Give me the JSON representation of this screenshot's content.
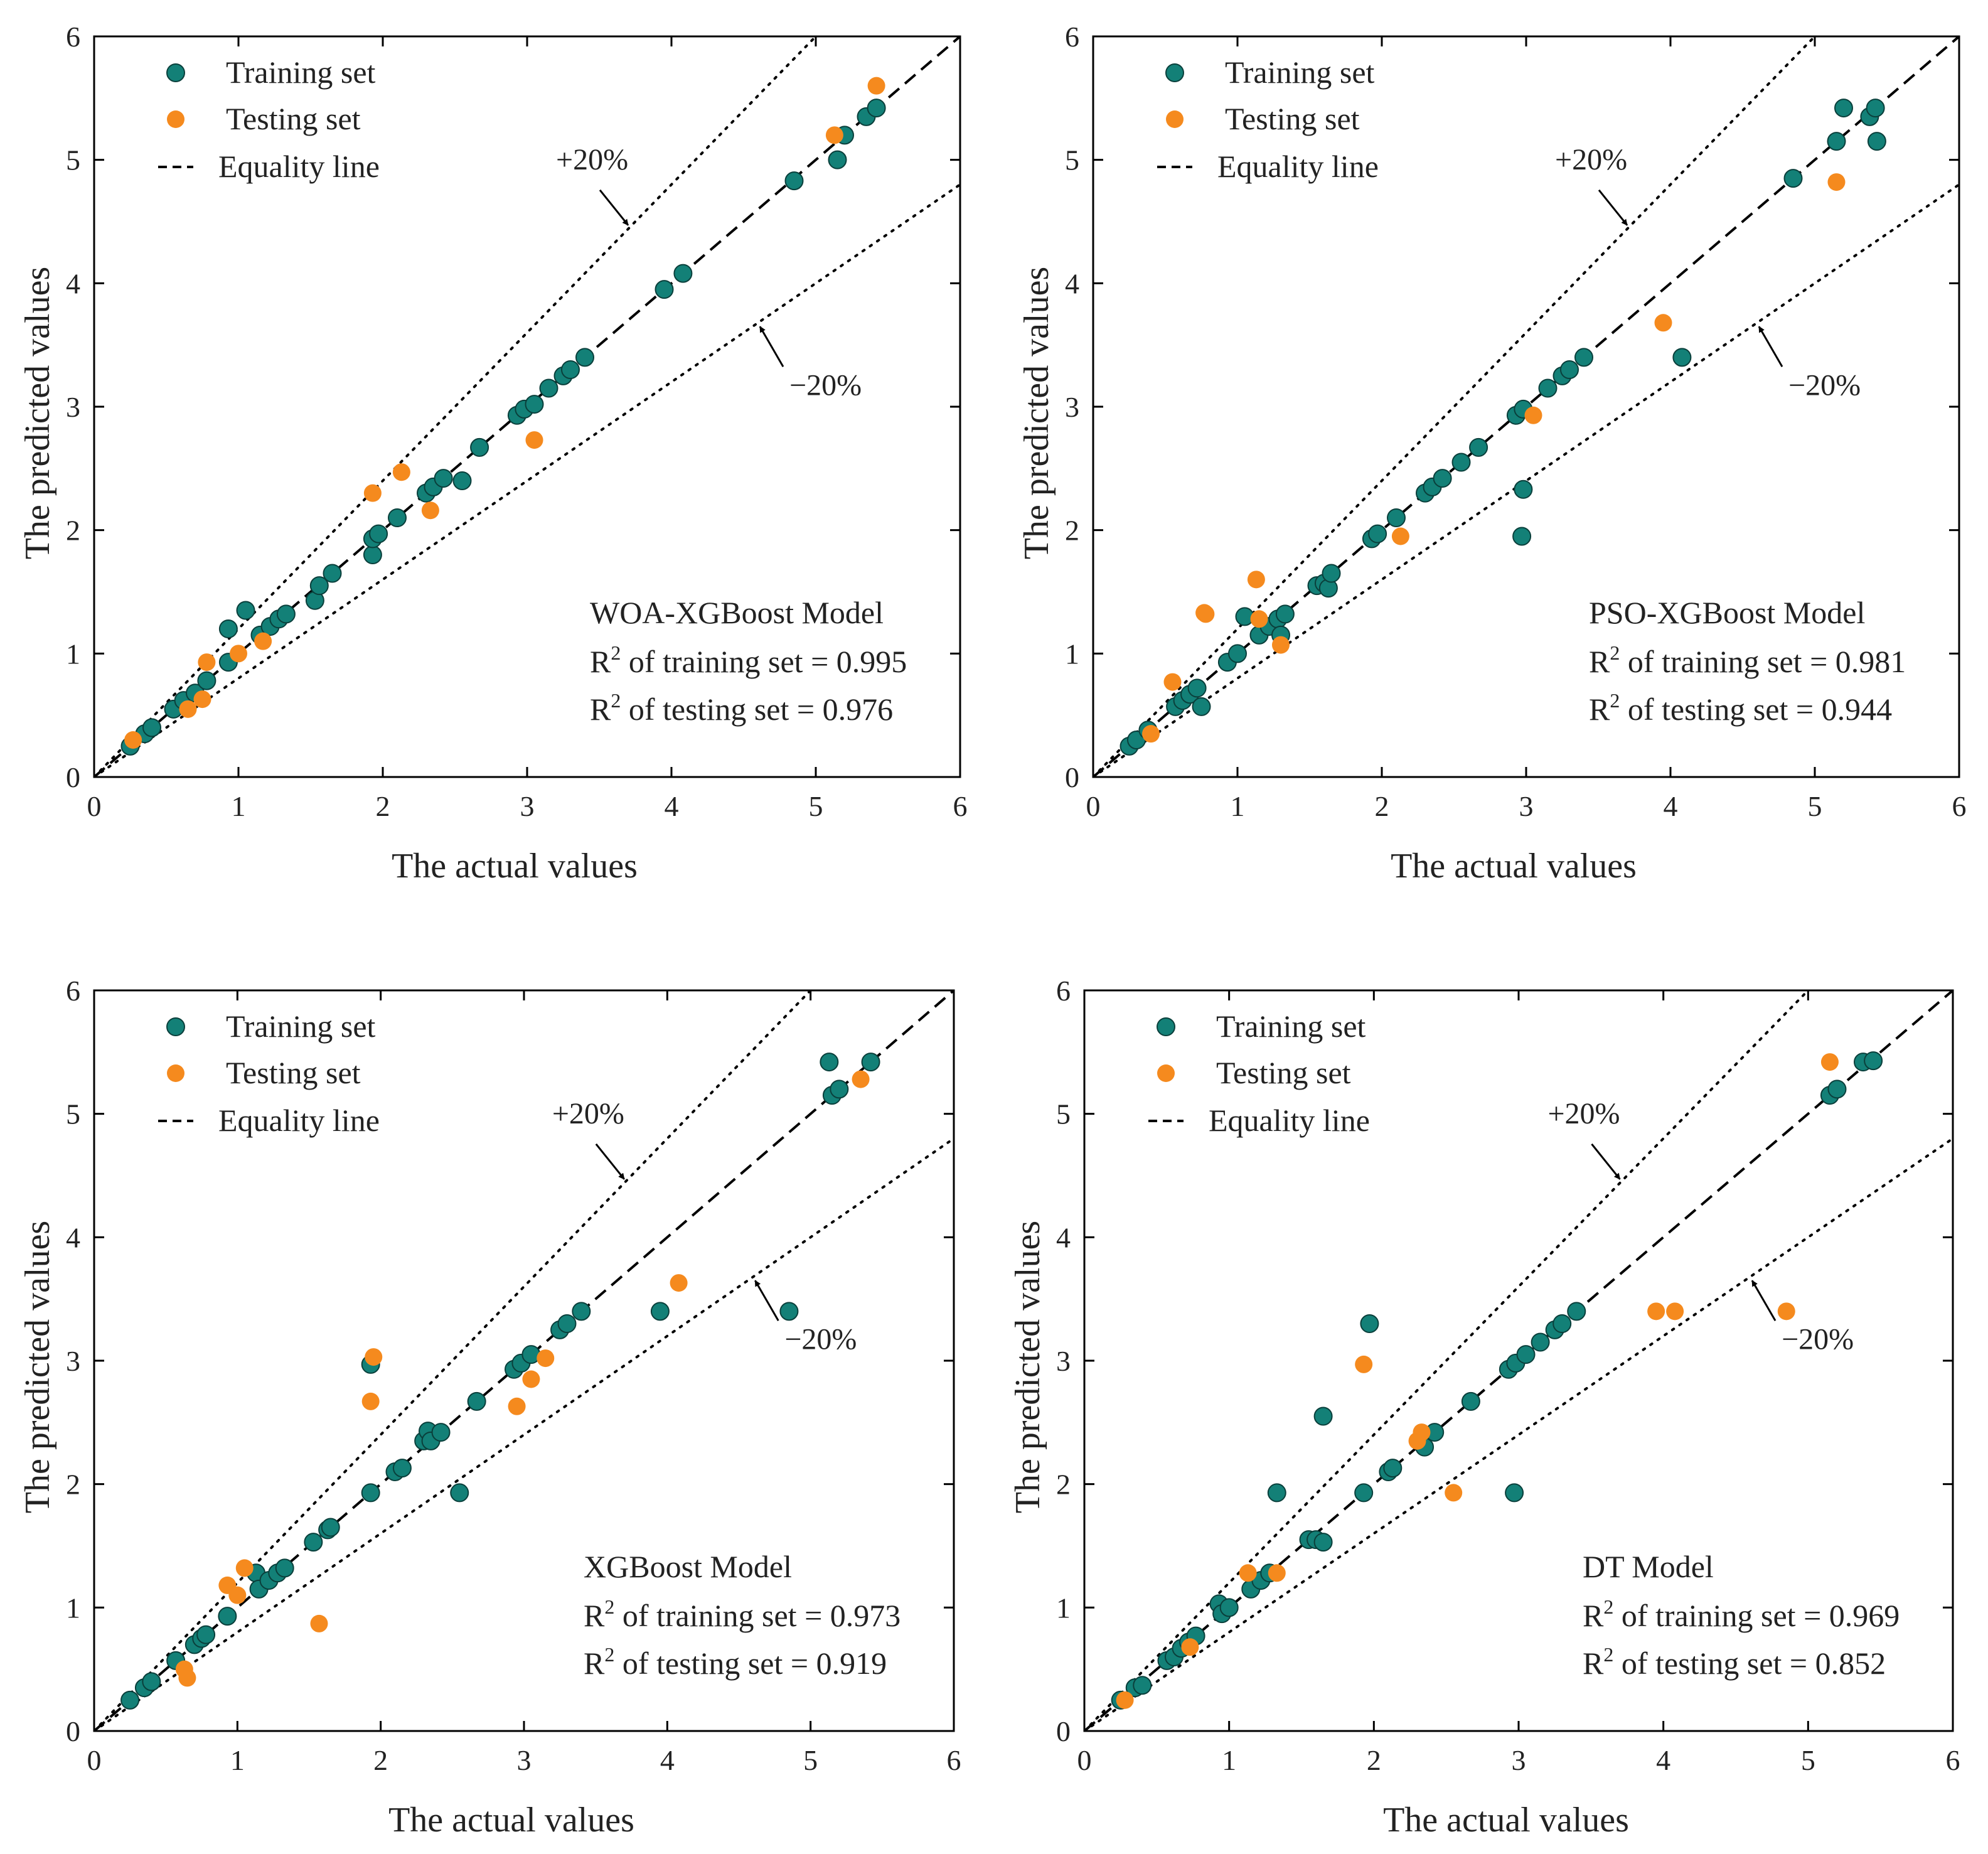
{
  "colors": {
    "training": "#138077",
    "testing": "#F58A1E",
    "axis": "#000000",
    "text": "#222222"
  },
  "legend": {
    "training": "Training set",
    "testing": "Testing set",
    "equality": "Equality line"
  },
  "annotations": {
    "plus": "+20%",
    "minus": "−20%"
  },
  "chart_data": [
    {
      "type": "scatter",
      "model": "WOA-XGBoost Model",
      "r2_train_label": "of training set = 0.995",
      "r2_test_label": "of testing set = 0.976",
      "r_symbol": "R",
      "r_sup": "2",
      "xlabel": "The actual values",
      "ylabel": "The predicted values",
      "xlim": [
        0,
        6
      ],
      "ylim": [
        0,
        6
      ],
      "xticks": [
        "0",
        "1",
        "2",
        "3",
        "4",
        "5",
        "6"
      ],
      "yticks": [
        "0",
        "1",
        "2",
        "3",
        "4",
        "5",
        "6"
      ],
      "legend_position": "top-left",
      "model_label_position": "bottom-right",
      "series": [
        {
          "name": "Training set",
          "points": [
            [
              0.25,
              0.25
            ],
            [
              0.35,
              0.35
            ],
            [
              0.4,
              0.4
            ],
            [
              0.55,
              0.55
            ],
            [
              0.62,
              0.62
            ],
            [
              0.7,
              0.68
            ],
            [
              0.78,
              0.78
            ],
            [
              0.93,
              0.93
            ],
            [
              0.93,
              1.2
            ],
            [
              1.05,
              1.35
            ],
            [
              1.15,
              1.15
            ],
            [
              1.22,
              1.22
            ],
            [
              1.28,
              1.28
            ],
            [
              1.33,
              1.32
            ],
            [
              1.53,
              1.43
            ],
            [
              1.56,
              1.55
            ],
            [
              1.65,
              1.65
            ],
            [
              1.93,
              1.8
            ],
            [
              1.93,
              1.93
            ],
            [
              1.97,
              1.97
            ],
            [
              2.1,
              2.1
            ],
            [
              2.3,
              2.3
            ],
            [
              2.35,
              2.35
            ],
            [
              2.42,
              2.42
            ],
            [
              2.55,
              2.4
            ],
            [
              2.67,
              2.67
            ],
            [
              2.93,
              2.93
            ],
            [
              2.98,
              2.98
            ],
            [
              3.05,
              3.02
            ],
            [
              3.15,
              3.15
            ],
            [
              3.25,
              3.25
            ],
            [
              3.3,
              3.3
            ],
            [
              3.4,
              3.4
            ],
            [
              3.95,
              3.95
            ],
            [
              4.08,
              4.08
            ],
            [
              4.85,
              4.83
            ],
            [
              5.15,
              5.0
            ],
            [
              5.2,
              5.2
            ],
            [
              5.35,
              5.35
            ],
            [
              5.42,
              5.42
            ]
          ]
        },
        {
          "name": "Testing set",
          "points": [
            [
              0.27,
              0.3
            ],
            [
              0.65,
              0.55
            ],
            [
              0.75,
              0.63
            ],
            [
              0.78,
              0.93
            ],
            [
              1.0,
              1.0
            ],
            [
              1.17,
              1.1
            ],
            [
              1.93,
              2.3
            ],
            [
              2.13,
              2.47
            ],
            [
              2.33,
              2.16
            ],
            [
              3.05,
              2.73
            ],
            [
              5.13,
              5.2
            ],
            [
              5.42,
              5.6
            ]
          ]
        }
      ]
    },
    {
      "type": "scatter",
      "model": "PSO-XGBoost Model",
      "r2_train_label": "of training set = 0.981",
      "r2_test_label": "of testing set = 0.944",
      "r_symbol": "R",
      "r_sup": "2",
      "xlabel": "The actual values",
      "ylabel": "The predicted values",
      "xlim": [
        0,
        6
      ],
      "ylim": [
        0,
        6
      ],
      "xticks": [
        "0",
        "1",
        "2",
        "3",
        "4",
        "5",
        "6"
      ],
      "yticks": [
        "0",
        "1",
        "2",
        "3",
        "4",
        "5",
        "6"
      ],
      "legend_position": "top-left",
      "model_label_position": "bottom-right",
      "series": [
        {
          "name": "Training set",
          "points": [
            [
              0.25,
              0.25
            ],
            [
              0.3,
              0.3
            ],
            [
              0.38,
              0.38
            ],
            [
              0.57,
              0.57
            ],
            [
              0.62,
              0.62
            ],
            [
              0.67,
              0.67
            ],
            [
              0.72,
              0.72
            ],
            [
              0.75,
              0.57
            ],
            [
              0.93,
              0.93
            ],
            [
              1.0,
              1.0
            ],
            [
              1.05,
              1.3
            ],
            [
              1.15,
              1.15
            ],
            [
              1.22,
              1.22
            ],
            [
              1.28,
              1.28
            ],
            [
              1.3,
              1.15
            ],
            [
              1.33,
              1.32
            ],
            [
              1.55,
              1.55
            ],
            [
              1.6,
              1.57
            ],
            [
              1.63,
              1.53
            ],
            [
              1.65,
              1.65
            ],
            [
              1.93,
              1.93
            ],
            [
              1.97,
              1.97
            ],
            [
              2.1,
              2.1
            ],
            [
              2.3,
              2.3
            ],
            [
              2.35,
              2.35
            ],
            [
              2.42,
              2.42
            ],
            [
              2.55,
              2.55
            ],
            [
              2.67,
              2.67
            ],
            [
              2.93,
              2.93
            ],
            [
              2.98,
              2.98
            ],
            [
              2.97,
              1.95
            ],
            [
              2.98,
              2.33
            ],
            [
              3.15,
              3.15
            ],
            [
              3.25,
              3.25
            ],
            [
              3.3,
              3.3
            ],
            [
              3.4,
              3.4
            ],
            [
              4.08,
              3.4
            ],
            [
              4.85,
              4.85
            ],
            [
              5.15,
              5.15
            ],
            [
              5.2,
              5.42
            ],
            [
              5.38,
              5.35
            ],
            [
              5.42,
              5.42
            ],
            [
              5.43,
              5.15
            ]
          ]
        },
        {
          "name": "Testing set",
          "points": [
            [
              0.4,
              0.35
            ],
            [
              0.55,
              0.77
            ],
            [
              0.77,
              1.33
            ],
            [
              0.78,
              1.32
            ],
            [
              1.13,
              1.6
            ],
            [
              1.15,
              1.28
            ],
            [
              1.3,
              1.07
            ],
            [
              2.13,
              1.95
            ],
            [
              3.05,
              2.93
            ],
            [
              3.95,
              3.68
            ],
            [
              5.15,
              4.82
            ]
          ]
        }
      ]
    },
    {
      "type": "scatter",
      "model": "XGBoost Model",
      "r2_train_label": "of training set = 0.973",
      "r2_test_label": "of testing set = 0.919",
      "r_symbol": "R",
      "r_sup": "2",
      "xlabel": "The actual values",
      "ylabel": "The predicted values",
      "xlim": [
        0,
        6
      ],
      "ylim": [
        0,
        6
      ],
      "xticks": [
        "0",
        "1",
        "2",
        "3",
        "4",
        "5",
        "6"
      ],
      "yticks": [
        "0",
        "1",
        "2",
        "3",
        "4",
        "5",
        "6"
      ],
      "legend_position": "top-left",
      "model_label_position": "bottom-right",
      "series": [
        {
          "name": "Training set",
          "points": [
            [
              0.25,
              0.25
            ],
            [
              0.35,
              0.35
            ],
            [
              0.4,
              0.4
            ],
            [
              0.57,
              0.57
            ],
            [
              0.7,
              0.7
            ],
            [
              0.75,
              0.75
            ],
            [
              0.78,
              0.78
            ],
            [
              0.93,
              0.93
            ],
            [
              1.13,
              1.28
            ],
            [
              1.15,
              1.15
            ],
            [
              1.22,
              1.22
            ],
            [
              1.28,
              1.28
            ],
            [
              1.33,
              1.32
            ],
            [
              1.53,
              1.53
            ],
            [
              1.63,
              1.63
            ],
            [
              1.65,
              1.65
            ],
            [
              1.93,
              1.93
            ],
            [
              1.93,
              2.97
            ],
            [
              2.1,
              2.1
            ],
            [
              2.15,
              2.13
            ],
            [
              2.3,
              2.35
            ],
            [
              2.33,
              2.43
            ],
            [
              2.35,
              2.35
            ],
            [
              2.42,
              2.42
            ],
            [
              2.55,
              1.93
            ],
            [
              2.67,
              2.67
            ],
            [
              2.93,
              2.93
            ],
            [
              2.98,
              2.98
            ],
            [
              3.05,
              3.05
            ],
            [
              3.25,
              3.25
            ],
            [
              3.3,
              3.3
            ],
            [
              3.4,
              3.4
            ],
            [
              3.95,
              3.4
            ],
            [
              4.85,
              3.4
            ],
            [
              5.13,
              5.42
            ],
            [
              5.15,
              5.15
            ],
            [
              5.2,
              5.2
            ],
            [
              5.42,
              5.42
            ]
          ]
        },
        {
          "name": "Testing set",
          "points": [
            [
              0.63,
              0.5
            ],
            [
              0.65,
              0.43
            ],
            [
              0.93,
              1.18
            ],
            [
              1.0,
              1.1
            ],
            [
              1.05,
              1.32
            ],
            [
              1.57,
              0.87
            ],
            [
              1.93,
              2.67
            ],
            [
              1.95,
              3.03
            ],
            [
              2.95,
              2.63
            ],
            [
              3.05,
              2.85
            ],
            [
              3.15,
              3.02
            ],
            [
              4.08,
              3.63
            ],
            [
              5.35,
              5.28
            ]
          ]
        }
      ]
    },
    {
      "type": "scatter",
      "model": "DT Model",
      "r2_train_label": "of training set = 0.969",
      "r2_test_label": "of testing set = 0.852",
      "r_symbol": "R",
      "r_sup": "2",
      "xlabel": "The actual values",
      "ylabel": "The predicted values",
      "xlim": [
        0,
        6
      ],
      "ylim": [
        0,
        6
      ],
      "xticks": [
        "0",
        "1",
        "2",
        "3",
        "4",
        "5",
        "6"
      ],
      "yticks": [
        "0",
        "1",
        "2",
        "3",
        "4",
        "5",
        "6"
      ],
      "legend_position": "top-left",
      "model_label_position": "bottom-right",
      "series": [
        {
          "name": "Training set",
          "points": [
            [
              0.25,
              0.25
            ],
            [
              0.35,
              0.35
            ],
            [
              0.4,
              0.37
            ],
            [
              0.57,
              0.57
            ],
            [
              0.62,
              0.6
            ],
            [
              0.67,
              0.67
            ],
            [
              0.72,
              0.72
            ],
            [
              0.77,
              0.77
            ],
            [
              0.93,
              1.03
            ],
            [
              0.95,
              0.95
            ],
            [
              1.0,
              1.0
            ],
            [
              1.15,
              1.15
            ],
            [
              1.22,
              1.22
            ],
            [
              1.28,
              1.28
            ],
            [
              1.33,
              1.93
            ],
            [
              1.55,
              1.55
            ],
            [
              1.6,
              1.55
            ],
            [
              1.65,
              1.53
            ],
            [
              1.65,
              2.55
            ],
            [
              1.93,
              1.93
            ],
            [
              1.97,
              3.3
            ],
            [
              2.1,
              2.1
            ],
            [
              2.13,
              2.13
            ],
            [
              2.35,
              2.3
            ],
            [
              2.42,
              2.42
            ],
            [
              2.67,
              2.67
            ],
            [
              2.93,
              2.93
            ],
            [
              2.97,
              1.93
            ],
            [
              2.98,
              2.98
            ],
            [
              3.05,
              3.05
            ],
            [
              3.15,
              3.15
            ],
            [
              3.25,
              3.25
            ],
            [
              3.3,
              3.3
            ],
            [
              3.4,
              3.4
            ],
            [
              5.15,
              5.15
            ],
            [
              5.2,
              5.2
            ],
            [
              5.38,
              5.42
            ],
            [
              5.45,
              5.43
            ]
          ]
        },
        {
          "name": "Testing set",
          "points": [
            [
              0.28,
              0.25
            ],
            [
              0.73,
              0.68
            ],
            [
              1.13,
              1.28
            ],
            [
              1.33,
              1.28
            ],
            [
              1.93,
              2.97
            ],
            [
              2.3,
              2.35
            ],
            [
              2.33,
              2.42
            ],
            [
              2.55,
              1.93
            ],
            [
              3.95,
              3.4
            ],
            [
              4.08,
              3.4
            ],
            [
              4.85,
              3.4
            ],
            [
              5.15,
              5.42
            ]
          ]
        }
      ]
    }
  ]
}
